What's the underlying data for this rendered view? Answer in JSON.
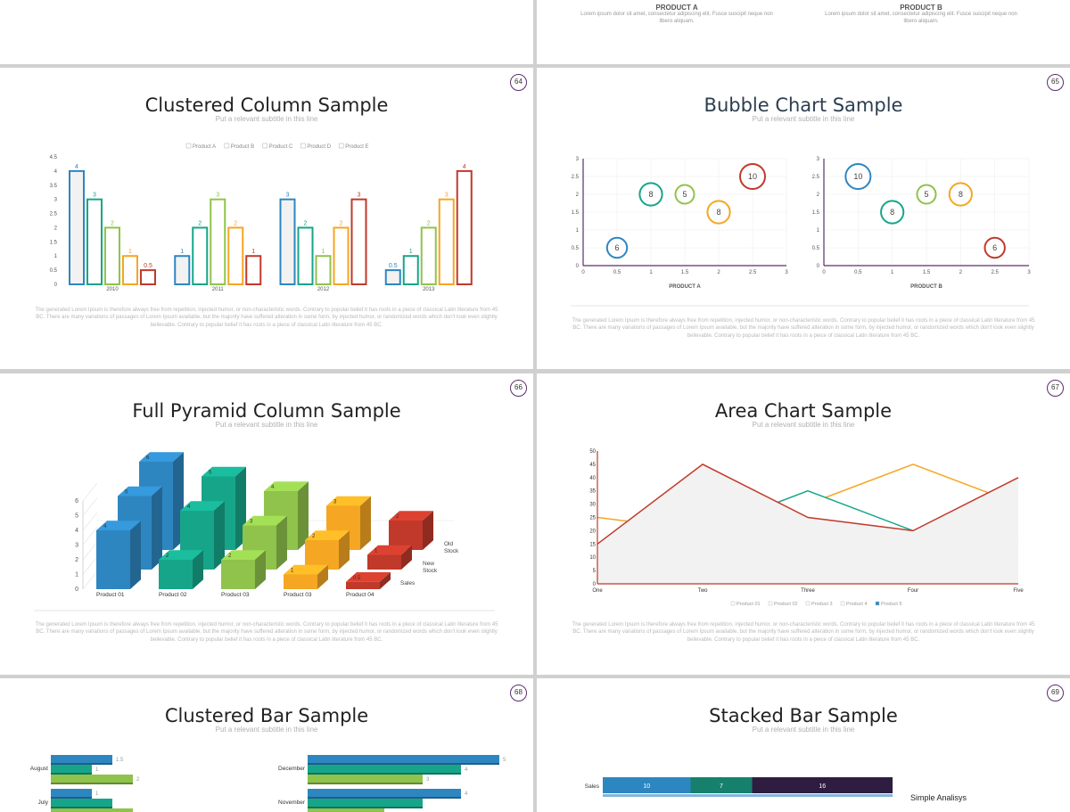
{
  "top_strip": {
    "product_a_title": "PRODUCT A",
    "product_b_title": "PRODUCT B",
    "product_text": "Lorem ipsum dolor sit amet, consectetur adipiscing elit. Fusce suscipit neque non libero aliquam."
  },
  "body_text": "The generated Lorem Ipsum is therefore always free from repetition, injected humor, or non-characteristic words. Contrary to popular belief it has roots in a piece of classical Latin literature from 45 BC. There are many variations of passages of Lorem Ipsum available, but the majority have suffered alteration in some form, by injected humor, or randomized words which don't look even slightly believable. Contrary to popular belief it has roots in a piece of classical Latin literature from 45 BC.",
  "subtitle": "Put a relevant subtitle in this line",
  "colors": {
    "blue": "#2e86c1",
    "teal": "#17a589",
    "green": "#8fc34b",
    "orange": "#f5a623",
    "red": "#c0392b",
    "purple": "#5a2d6e",
    "navy": "#2c3e50"
  },
  "slides": [
    {
      "title": "Clustered Column Sample",
      "page": "64"
    },
    {
      "title": "Bubble Chart Sample",
      "page": "65"
    },
    {
      "title": "Full Pyramid Column Sample",
      "page": "66"
    },
    {
      "title": "Area Chart Sample",
      "page": "67"
    },
    {
      "title": "Clustered Bar Sample",
      "page": "68"
    },
    {
      "title": "Stacked Bar Sample",
      "page": "69"
    }
  ],
  "chart_data": [
    {
      "type": "bar",
      "title": "Clustered Column Sample",
      "categories": [
        "2010",
        "2011",
        "2012",
        "2013"
      ],
      "ylim": [
        0,
        4.5
      ],
      "yticks": [
        "0",
        "0.5",
        "1",
        "1.5",
        "2",
        "2.5",
        "3",
        "3.5",
        "4",
        "4.5"
      ],
      "legend": "top",
      "series": [
        {
          "name": "Product A",
          "values": [
            4,
            1,
            3,
            0.5
          ]
        },
        {
          "name": "Product B",
          "values": [
            3,
            2,
            2,
            1
          ]
        },
        {
          "name": "Product C",
          "values": [
            2,
            3,
            1,
            2
          ]
        },
        {
          "name": "Product D",
          "values": [
            1,
            2,
            2,
            3
          ]
        },
        {
          "name": "Product E",
          "values": [
            0.5,
            1,
            3,
            4
          ]
        }
      ]
    },
    {
      "type": "scatter",
      "subtype": "bubble",
      "xlabel": "PRODUCT A",
      "xlim": [
        0,
        3
      ],
      "ylim": [
        0,
        3
      ],
      "xticks": [
        "0",
        "0.5",
        "1",
        "1.5",
        "2",
        "2.5",
        "3"
      ],
      "yticks": [
        "0",
        "0.5",
        "1",
        "1.5",
        "2",
        "2.5",
        "3"
      ],
      "points": [
        {
          "x": 0.5,
          "y": 0.5,
          "label": "6",
          "color": "blue"
        },
        {
          "x": 1,
          "y": 2,
          "label": "8",
          "color": "teal"
        },
        {
          "x": 1.5,
          "y": 2,
          "label": "5",
          "color": "green"
        },
        {
          "x": 2,
          "y": 1.5,
          "label": "8",
          "color": "orange"
        },
        {
          "x": 2.5,
          "y": 2.5,
          "label": "10",
          "color": "red"
        }
      ]
    },
    {
      "type": "scatter",
      "subtype": "bubble",
      "xlabel": "PRODUCT B",
      "xlim": [
        0,
        3
      ],
      "ylim": [
        0,
        3
      ],
      "xticks": [
        "0",
        "0.5",
        "1",
        "1.5",
        "2",
        "2.5",
        "3"
      ],
      "yticks": [
        "0",
        "0.5",
        "1",
        "1.5",
        "2",
        "2.5",
        "3"
      ],
      "points": [
        {
          "x": 0.5,
          "y": 2.5,
          "label": "10",
          "color": "blue"
        },
        {
          "x": 1,
          "y": 1.5,
          "label": "8",
          "color": "teal"
        },
        {
          "x": 1.5,
          "y": 2,
          "label": "5",
          "color": "green"
        },
        {
          "x": 2,
          "y": 2,
          "label": "8",
          "color": "orange"
        },
        {
          "x": 2.5,
          "y": 0.5,
          "label": "6",
          "color": "red"
        }
      ]
    },
    {
      "type": "bar",
      "subtype": "3d-column",
      "title": "Full Pyramid Column Sample",
      "categories": [
        "Product 01",
        "Product 02",
        "Product 03",
        "Product 03",
        "Product 04"
      ],
      "rows": [
        "Sales",
        "New Stock",
        "Old Stock"
      ],
      "ylim": [
        0,
        6
      ],
      "yticks": [
        "0",
        "1",
        "2",
        "3",
        "4",
        "5",
        "6"
      ],
      "values": [
        [
          4,
          5,
          6
        ],
        [
          2,
          4,
          5
        ],
        [
          2,
          3,
          4
        ],
        [
          1,
          2,
          3
        ],
        [
          0.5,
          1,
          2
        ]
      ],
      "labels": [
        [
          "4",
          "5",
          "6"
        ],
        [
          "2",
          "4",
          "5"
        ],
        [
          "2",
          "3",
          "4"
        ],
        [
          "1",
          "2",
          "3"
        ],
        [
          "0.5",
          "1",
          "2"
        ]
      ]
    },
    {
      "type": "area",
      "title": "Area Chart Sample",
      "categories": [
        "One",
        "Two",
        "Three",
        "Four",
        "Five"
      ],
      "ylim": [
        0,
        50
      ],
      "yticks": [
        "0",
        "5",
        "10",
        "15",
        "20",
        "25",
        "30",
        "35",
        "40",
        "45",
        "50"
      ],
      "legend": [
        "Product 01",
        "Product 02",
        "Product 3",
        "Product 4",
        "Product 5"
      ],
      "series": [
        {
          "name": "Product 4",
          "values": [
            25,
            20,
            30,
            45,
            30
          ],
          "color": "orange"
        },
        {
          "name": "Product 3",
          "values": [
            10,
            20,
            35,
            20,
            15
          ],
          "color": "teal"
        },
        {
          "name": "Product 5",
          "values": [
            15,
            45,
            25,
            20,
            40
          ],
          "color": "red"
        }
      ]
    },
    {
      "type": "bar",
      "subtype": "horizontal",
      "title": "Clustered Bar Sample",
      "panels": [
        {
          "rows": [
            {
              "label": "August",
              "values": [
                1.5,
                1,
                2
              ],
              "labels": [
                "1.5",
                "1",
                "2"
              ]
            },
            {
              "label": "July",
              "values": [
                1,
                1.5,
                2
              ],
              "labels": [
                "1",
                "",
                ""
              ]
            }
          ]
        },
        {
          "rows": [
            {
              "label": "December",
              "values": [
                5,
                4,
                3
              ],
              "labels": [
                "5",
                "4",
                "3"
              ]
            },
            {
              "label": "November",
              "values": [
                4,
                3,
                2
              ],
              "labels": [
                "4",
                "",
                ""
              ]
            }
          ]
        }
      ]
    },
    {
      "type": "bar",
      "subtype": "stacked-horizontal",
      "title": "Stacked Bar Sample",
      "rows": [
        {
          "label": "Sales",
          "values": [
            10,
            7,
            16
          ],
          "labels": [
            "10",
            "7",
            "16"
          ]
        }
      ],
      "annotation": "Simple Analisys"
    }
  ]
}
